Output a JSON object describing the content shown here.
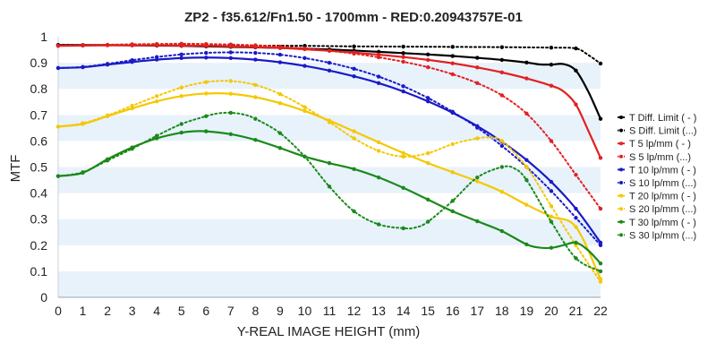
{
  "chart_data": {
    "type": "line",
    "title": "ZP2 - f35.612/Fn1.50 - 1700mm - RED:0.20943757E-01",
    "xlabel": "Y-REAL IMAGE HEIGHT (mm)",
    "ylabel": "MTF",
    "xlim": [
      0,
      22
    ],
    "ylim": [
      0,
      1
    ],
    "xticks": [
      0,
      1,
      2,
      3,
      4,
      5,
      6,
      7,
      8,
      9,
      10,
      11,
      12,
      13,
      14,
      15,
      16,
      17,
      18,
      19,
      20,
      21,
      22
    ],
    "yticks": [
      0,
      0.1,
      0.2,
      0.3,
      0.4,
      0.5,
      0.6,
      0.7,
      0.8,
      0.9,
      1
    ],
    "ytick_labels": [
      "0",
      "0.1",
      "0.2",
      "0.3",
      "0.4",
      "0.5",
      "0.6",
      "0.7",
      "0.8",
      "0.9",
      "1"
    ],
    "grid": "horizontal bands",
    "legend_position": "right",
    "series": [
      {
        "name": "T Diff. Limit ( - )",
        "color": "#000000",
        "style": "solid",
        "x": [
          0,
          1,
          2,
          3,
          4,
          5,
          6,
          7,
          8,
          9,
          10,
          11,
          12,
          13,
          14,
          15,
          16,
          17,
          18,
          19,
          19.5,
          20,
          20.5,
          21,
          21.5,
          22
        ],
        "y": [
          0.968,
          0.968,
          0.968,
          0.967,
          0.966,
          0.965,
          0.963,
          0.961,
          0.959,
          0.957,
          0.954,
          0.951,
          0.947,
          0.942,
          0.937,
          0.932,
          0.926,
          0.919,
          0.911,
          0.901,
          0.894,
          0.893,
          0.895,
          0.87,
          0.79,
          0.685
        ]
      },
      {
        "name": "S Diff. Limit (...)",
        "color": "#000000",
        "style": "dotted",
        "x": [
          0,
          2,
          4,
          6,
          8,
          10,
          12,
          14,
          16,
          18,
          20,
          21,
          21.5,
          22
        ],
        "y": [
          0.968,
          0.968,
          0.968,
          0.967,
          0.966,
          0.965,
          0.963,
          0.962,
          0.961,
          0.96,
          0.958,
          0.955,
          0.93,
          0.897
        ]
      },
      {
        "name": "T 5 lp/mm ( - )",
        "color": "#e32020",
        "style": "solid",
        "x": [
          0,
          1,
          2,
          3,
          4,
          5,
          6,
          7,
          8,
          9,
          10,
          11,
          12,
          13,
          14,
          15,
          16,
          17,
          18,
          19,
          20,
          20.5,
          21,
          21.5,
          22
        ],
        "y": [
          0.965,
          0.966,
          0.967,
          0.967,
          0.967,
          0.966,
          0.965,
          0.963,
          0.96,
          0.957,
          0.952,
          0.946,
          0.939,
          0.931,
          0.922,
          0.911,
          0.898,
          0.882,
          0.863,
          0.84,
          0.812,
          0.79,
          0.74,
          0.64,
          0.535
        ]
      },
      {
        "name": "S 5 lp/mm (...)",
        "color": "#e32020",
        "style": "dotted",
        "x": [
          0,
          1,
          2,
          3,
          4,
          5,
          6,
          7,
          8,
          9,
          10,
          11,
          12,
          13,
          14,
          15,
          16,
          17,
          18,
          19,
          20,
          21,
          22
        ],
        "y": [
          0.965,
          0.967,
          0.969,
          0.971,
          0.972,
          0.973,
          0.972,
          0.97,
          0.967,
          0.962,
          0.955,
          0.946,
          0.935,
          0.921,
          0.904,
          0.883,
          0.856,
          0.822,
          0.775,
          0.705,
          0.6,
          0.47,
          0.34
        ]
      },
      {
        "name": "T 10 lp/mm ( - )",
        "color": "#1a1ac8",
        "style": "solid",
        "x": [
          0,
          1,
          2,
          3,
          4,
          5,
          6,
          7,
          8,
          9,
          10,
          11,
          12,
          13,
          14,
          15,
          16,
          17,
          18,
          19,
          20,
          21,
          22
        ],
        "y": [
          0.88,
          0.883,
          0.893,
          0.903,
          0.912,
          0.918,
          0.92,
          0.918,
          0.912,
          0.902,
          0.888,
          0.87,
          0.848,
          0.822,
          0.79,
          0.752,
          0.708,
          0.657,
          0.597,
          0.527,
          0.443,
          0.34,
          0.21
        ]
      },
      {
        "name": "S 10 lp/mm (...)",
        "color": "#1a1ac8",
        "style": "dotted",
        "x": [
          0,
          1,
          2,
          3,
          4,
          5,
          6,
          7,
          8,
          9,
          10,
          11,
          12,
          13,
          14,
          15,
          16,
          17,
          18,
          19,
          20,
          21,
          22
        ],
        "y": [
          0.88,
          0.884,
          0.896,
          0.91,
          0.922,
          0.932,
          0.938,
          0.94,
          0.938,
          0.931,
          0.918,
          0.9,
          0.877,
          0.847,
          0.81,
          0.765,
          0.712,
          0.651,
          0.581,
          0.5,
          0.408,
          0.305,
          0.2
        ]
      },
      {
        "name": "T 20 lp/mm ( - )",
        "color": "#f5c800",
        "style": "solid",
        "x": [
          0,
          1,
          2,
          3,
          4,
          5,
          6,
          7,
          8,
          9,
          10,
          11,
          12,
          13,
          14,
          15,
          16,
          17,
          18,
          19,
          20,
          21,
          22
        ],
        "y": [
          0.655,
          0.665,
          0.695,
          0.725,
          0.752,
          0.772,
          0.782,
          0.781,
          0.768,
          0.745,
          0.715,
          0.678,
          0.637,
          0.595,
          0.554,
          0.515,
          0.48,
          0.445,
          0.405,
          0.355,
          0.31,
          0.27,
          0.07
        ]
      },
      {
        "name": "S 20 lp/mm (...)",
        "color": "#f5c800",
        "style": "dotted",
        "x": [
          0,
          1,
          2,
          3,
          4,
          5,
          6,
          7,
          8,
          9,
          10,
          11,
          12,
          13,
          14,
          15,
          16,
          17,
          17.5,
          18,
          19,
          20,
          21,
          22
        ],
        "y": [
          0.655,
          0.668,
          0.698,
          0.735,
          0.772,
          0.805,
          0.826,
          0.83,
          0.815,
          0.78,
          0.73,
          0.672,
          0.61,
          0.562,
          0.54,
          0.553,
          0.588,
          0.61,
          0.613,
          0.6,
          0.5,
          0.35,
          0.2,
          0.06
        ]
      },
      {
        "name": "T 30 lp/mm ( - )",
        "color": "#1a8a1a",
        "style": "solid",
        "x": [
          0,
          1,
          2,
          3,
          4,
          5,
          5.5,
          6,
          7,
          8,
          9,
          10,
          11,
          12,
          13,
          14,
          15,
          16,
          17,
          18,
          19,
          19.5,
          20,
          20.5,
          21,
          21.5,
          22
        ],
        "y": [
          0.465,
          0.478,
          0.53,
          0.575,
          0.61,
          0.632,
          0.637,
          0.637,
          0.626,
          0.604,
          0.573,
          0.54,
          0.515,
          0.492,
          0.46,
          0.42,
          0.375,
          0.33,
          0.292,
          0.254,
          0.203,
          0.191,
          0.19,
          0.2,
          0.21,
          0.18,
          0.13
        ]
      },
      {
        "name": "S 30 lp/mm (...)",
        "color": "#1a8a1a",
        "style": "dotted",
        "x": [
          0,
          1,
          2,
          3,
          4,
          5,
          6,
          6.5,
          7,
          7.5,
          8,
          9,
          10,
          11,
          12,
          13,
          14,
          14.5,
          15,
          16,
          17,
          18,
          18.5,
          19,
          20,
          21,
          22
        ],
        "y": [
          0.465,
          0.48,
          0.525,
          0.57,
          0.62,
          0.665,
          0.695,
          0.706,
          0.708,
          0.702,
          0.685,
          0.63,
          0.54,
          0.425,
          0.33,
          0.28,
          0.265,
          0.268,
          0.29,
          0.37,
          0.46,
          0.5,
          0.495,
          0.45,
          0.29,
          0.15,
          0.1
        ]
      }
    ]
  }
}
